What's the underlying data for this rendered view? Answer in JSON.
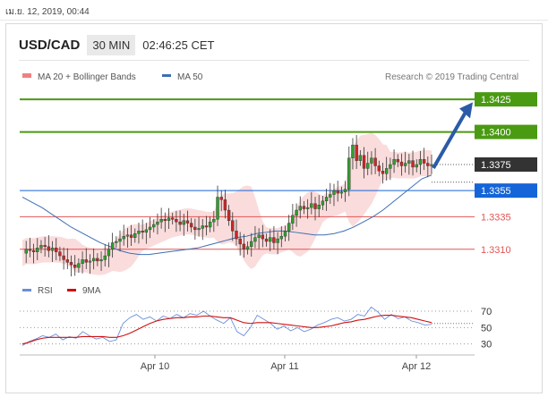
{
  "timestamp": "เม.ย. 12, 2019, 00:44",
  "header": {
    "pair": "USD/CAD",
    "timeframe": "30 MIN",
    "time": "02:46:25 CET"
  },
  "legend": {
    "ma20_label": "MA 20 + Bollinger Bands",
    "ma50_label": "MA 50",
    "copyright": "Research © 2019 Trading Central"
  },
  "rsi_legend": {
    "rsi_label": "RSI",
    "ma_label": "9MA"
  },
  "colors": {
    "resistance": "#4a9a12",
    "current": "#333333",
    "pivot": "#1565d8",
    "support": "#e25555",
    "candle_up": "#2e9e2e",
    "candle_down": "#c62828",
    "arrow": "#2b5aa8",
    "bollinger": "#f7c9c9",
    "ma50": "#3d6fb5",
    "rsi": "#6a8fd8",
    "rsi_ma": "#d01010"
  },
  "chart_data": [
    {
      "type": "candlestick",
      "title": "",
      "x_ticks": [
        "Apr 10",
        "Apr 11",
        "Apr 12"
      ],
      "ylim": [
        1.3292,
        1.3434
      ],
      "levels": [
        {
          "label": "1.3425",
          "value": 1.3425,
          "kind": "resistance"
        },
        {
          "label": "1.3400",
          "value": 1.34,
          "kind": "resistance"
        },
        {
          "label": "1.3375",
          "value": 1.3375,
          "kind": "current"
        },
        {
          "label": "1.3355",
          "value": 1.3355,
          "kind": "pivot"
        },
        {
          "label": "1.3335",
          "value": 1.3335,
          "kind": "support"
        },
        {
          "label": "1.3310",
          "value": 1.331,
          "kind": "support"
        }
      ],
      "projection": {
        "from": 1.3375,
        "to": 1.342
      },
      "close_series": [
        1.3307,
        1.331,
        1.3309,
        1.3308,
        1.3311,
        1.3313,
        1.3312,
        1.3309,
        1.3311,
        1.3308,
        1.3305,
        1.3302,
        1.33,
        1.3298,
        1.3296,
        1.3299,
        1.3302,
        1.33,
        1.3301,
        1.3303,
        1.3301,
        1.3302,
        1.3305,
        1.331,
        1.3315,
        1.3316,
        1.3318,
        1.332,
        1.3321,
        1.3319,
        1.3322,
        1.3324,
        1.3323,
        1.3325,
        1.3327,
        1.3329,
        1.3331,
        1.3333,
        1.3332,
        1.3334,
        1.3333,
        1.3331,
        1.3329,
        1.3332,
        1.333,
        1.3327,
        1.3325,
        1.3326,
        1.3328,
        1.3327,
        1.3331,
        1.3333,
        1.335,
        1.3348,
        1.334,
        1.3332,
        1.3324,
        1.3318,
        1.3314,
        1.331,
        1.3312,
        1.3316,
        1.3319,
        1.3321,
        1.3318,
        1.3316,
        1.3319,
        1.3315,
        1.3318,
        1.332,
        1.3324,
        1.333,
        1.3336,
        1.334,
        1.3343,
        1.3341,
        1.3342,
        1.3345,
        1.3341,
        1.3344,
        1.3347,
        1.335,
        1.3352,
        1.3355,
        1.3353,
        1.3354,
        1.3356,
        1.338,
        1.339,
        1.3378,
        1.3382,
        1.3372,
        1.3376,
        1.338,
        1.3374,
        1.337,
        1.3368,
        1.3372,
        1.3375,
        1.3379,
        1.3377,
        1.3374,
        1.3376,
        1.3378,
        1.3373,
        1.3375,
        1.3379,
        1.3376,
        1.3374,
        1.3375
      ],
      "ma50_series": [
        1.335,
        1.3346,
        1.3342,
        1.3337,
        1.3332,
        1.3327,
        1.3323,
        1.3319,
        1.3315,
        1.3312,
        1.3309,
        1.3307,
        1.3306,
        1.3306,
        1.3307,
        1.3308,
        1.3309,
        1.331,
        1.3311,
        1.3313,
        1.3315,
        1.3317,
        1.3319,
        1.332,
        1.3322,
        1.3323,
        1.3324,
        1.3324,
        1.3323,
        1.3322,
        1.3321,
        1.3321,
        1.3322,
        1.3324,
        1.3327,
        1.3331,
        1.3335,
        1.334,
        1.3346,
        1.3352,
        1.3358,
        1.3364,
        1.3367
      ]
    },
    {
      "type": "line",
      "title": "",
      "ylim": [
        22,
        82
      ],
      "y_ticks": [
        70,
        50,
        30
      ],
      "series": [
        {
          "name": "RSI",
          "values": [
            28,
            33,
            36,
            40,
            38,
            42,
            35,
            39,
            37,
            45,
            40,
            36,
            38,
            33,
            35,
            55,
            62,
            66,
            60,
            63,
            58,
            64,
            61,
            66,
            62,
            67,
            65,
            70,
            64,
            59,
            55,
            62,
            45,
            40,
            50,
            65,
            60,
            55,
            48,
            52,
            46,
            50,
            45,
            48,
            53,
            56,
            60,
            62,
            58,
            60,
            66,
            64,
            75,
            69,
            60,
            66,
            61,
            63,
            58,
            56,
            53,
            54
          ]
        },
        {
          "name": "9MA",
          "values": [
            30,
            32,
            35,
            37,
            38,
            38,
            38,
            38,
            38,
            39,
            39,
            39,
            39,
            38,
            38,
            40,
            43,
            47,
            51,
            55,
            58,
            60,
            61,
            62,
            62,
            63,
            63,
            64,
            64,
            63,
            62,
            62,
            59,
            56,
            55,
            56,
            56,
            56,
            55,
            54,
            53,
            52,
            51,
            50,
            50,
            51,
            52,
            54,
            56,
            57,
            59,
            60,
            62,
            64,
            65,
            65,
            64,
            63,
            62,
            60,
            58,
            56
          ]
        }
      ]
    }
  ]
}
